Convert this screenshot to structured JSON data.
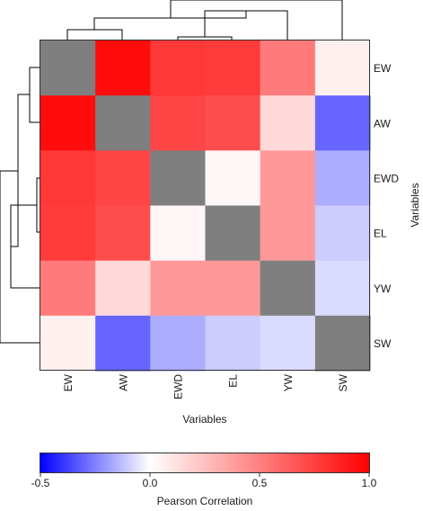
{
  "chart_data": {
    "type": "heatmap",
    "rows": [
      "EW",
      "AW",
      "EWD",
      "EL",
      "YW",
      "SW"
    ],
    "columns": [
      "EW",
      "AW",
      "EWD",
      "EL",
      "YW",
      "SW"
    ],
    "values": [
      [
        null,
        0.95,
        0.78,
        0.77,
        0.52,
        0.06
      ],
      [
        0.95,
        null,
        0.73,
        0.7,
        0.15,
        -0.3
      ],
      [
        0.78,
        0.73,
        null,
        0.03,
        0.4,
        -0.16
      ],
      [
        0.77,
        0.7,
        0.03,
        null,
        0.4,
        -0.1
      ],
      [
        0.52,
        0.15,
        0.4,
        0.4,
        null,
        -0.07
      ],
      [
        0.06,
        -0.3,
        -0.16,
        -0.1,
        -0.07,
        null
      ]
    ],
    "diagonal_color": "#7f7f7f",
    "xlabel": "Variables",
    "ylabel": "Variables",
    "colorbar": {
      "label": "Pearson Correlation",
      "range": [
        -0.5,
        1.0
      ],
      "ticks": [
        "-0.5",
        "0.0",
        "0.5",
        "1.0"
      ],
      "tick_values": [
        -0.5,
        0.0,
        0.5,
        1.0
      ],
      "colors": {
        "low": "#0000ff",
        "mid": "#ffffff",
        "high": "#ff0000"
      }
    },
    "dendrograms": {
      "top": true,
      "left": true
    }
  }
}
